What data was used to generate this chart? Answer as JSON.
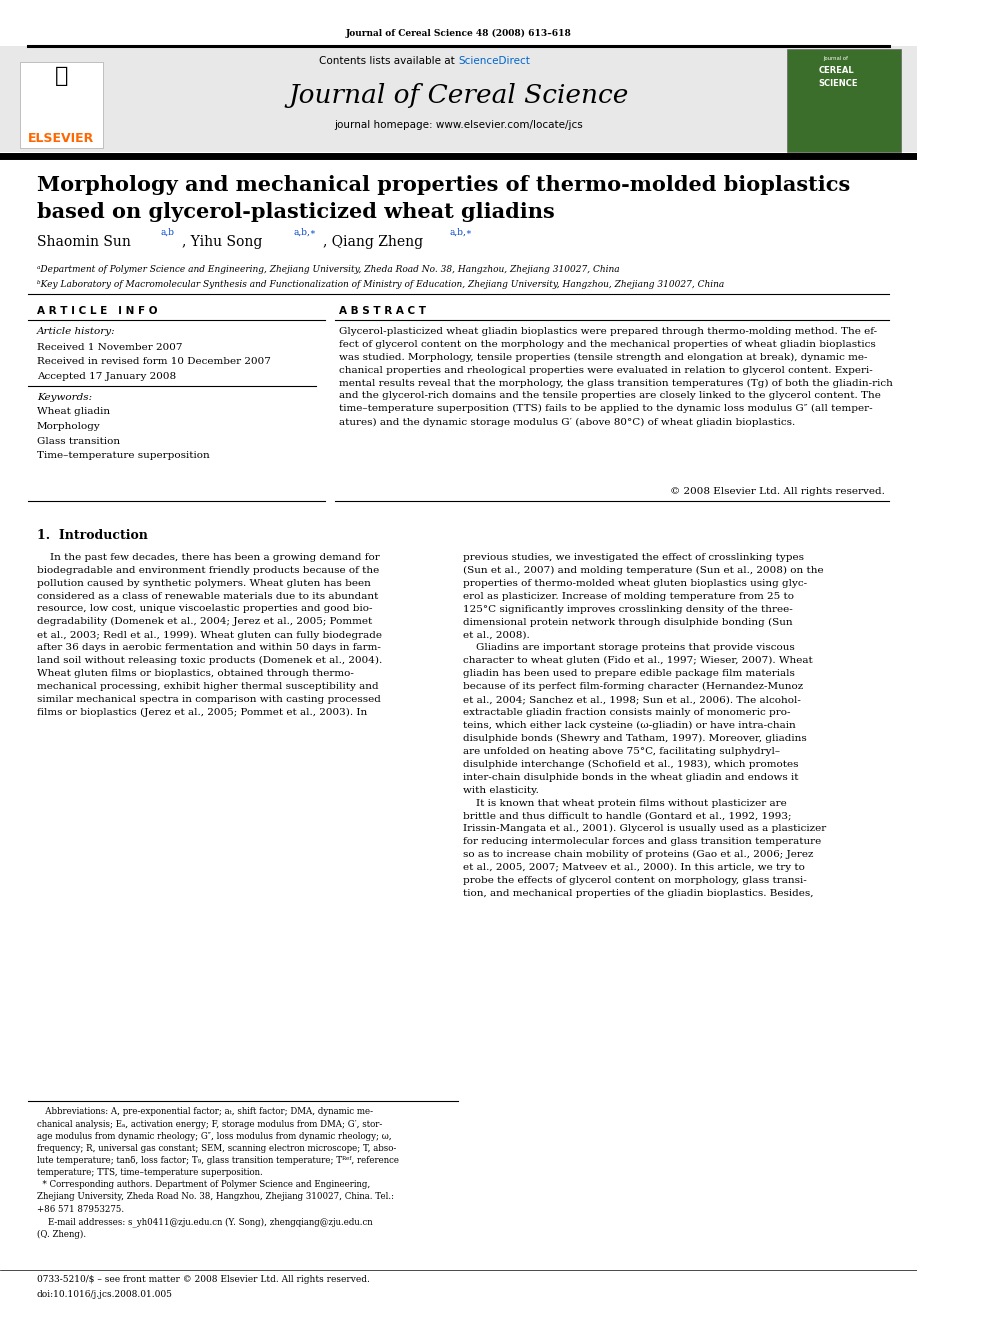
{
  "page_width": 9.92,
  "page_height": 13.23,
  "bg_color": "#ffffff",
  "journal_citation": "Journal of Cereal Science 48 (2008) 613–618",
  "header_bg": "#e8e8e8",
  "contents_line_plain": "Contents lists available at ",
  "contents_line_link": "ScienceDirect",
  "sciencedirect_color": "#0066cc",
  "journal_title": "Journal of Cereal Science",
  "homepage_line": "journal homepage: www.elsevier.com/locate/jcs",
  "elsevier_color": "#ff6600",
  "elsevier_text": "ELSEVIER",
  "paper_title_line1": "Morphology and mechanical properties of thermo-molded bioplastics",
  "paper_title_line2": "based on glycerol-plasticized wheat gliadins",
  "affil_a": "ᵃDepartment of Polymer Science and Engineering, Zhejiang University, Zheda Road No. 38, Hangzhou, Zhejiang 310027, China",
  "affil_b": "ᵇKey Laboratory of Macromolecular Synthesis and Functionalization of Ministry of Education, Zhejiang University, Hangzhou, Zhejiang 310027, China",
  "article_info_header": "A R T I C L E   I N F O",
  "abstract_header": "A B S T R A C T",
  "article_history_label": "Article history:",
  "received_line": "Received 1 November 2007",
  "revised_line": "Received in revised form 10 December 2007",
  "accepted_line": "Accepted 17 January 2008",
  "keywords_label": "Keywords:",
  "keyword1": "Wheat gliadin",
  "keyword2": "Morphology",
  "keyword3": "Glass transition",
  "keyword4": "Time–temperature superposition",
  "copyright_line": "© 2008 Elsevier Ltd. All rights reserved.",
  "section1_header": "1.  Introduction",
  "issn_line": "0733-5210/$ – see front matter © 2008 Elsevier Ltd. All rights reserved.",
  "doi_line": "doi:10.1016/j.jcs.2008.01.005",
  "link_color": "#0044cc"
}
